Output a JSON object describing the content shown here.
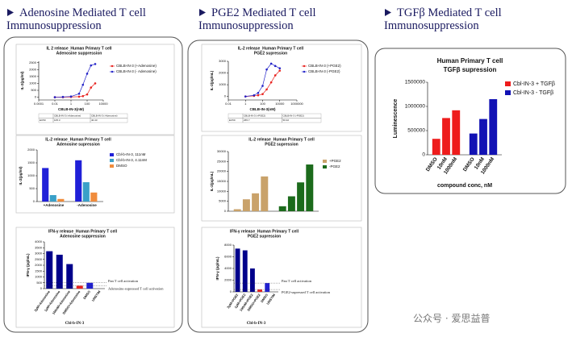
{
  "panels": [
    {
      "heading": "Adenosine Mediated T cell Immunosuppression"
    },
    {
      "heading": "PGE2 Mediated T cell Immunosuppression"
    },
    {
      "heading": "TGFβ Mediated T cell Immunosuppression"
    }
  ],
  "watermark": "公众号 · 爱思益普",
  "chart_data": [
    {
      "type": "line",
      "title": "IL 2 release_Human Primary T cell",
      "subtitle": "Adenosine suppression",
      "xlabel": "CBLB-IN-3(nM)",
      "ylabel": "IL-2(pg/ml)",
      "xlog": true,
      "x": [
        0.01,
        0.1,
        1,
        10,
        30,
        100,
        300,
        1000
      ],
      "xlim": [
        0.0001,
        10000
      ],
      "xticks": [
        0.0001,
        0.01,
        1,
        100,
        10000
      ],
      "ylim": [
        -200,
        2600
      ],
      "yticks": [
        0,
        500,
        1000,
        1500,
        2000,
        2500
      ],
      "legend": "right",
      "series": [
        {
          "name": "CBLB-IN-3 (+Adenosine)",
          "color": "#e8231f",
          "values": [
            0,
            0,
            20,
            40,
            80,
            200,
            700,
            1000
          ]
        },
        {
          "name": "CBLB-IN-3 (- Adenosine)",
          "color": "#2323c8",
          "values": [
            0,
            20,
            50,
            250,
            900,
            1700,
            2300,
            2400
          ]
        }
      ],
      "table": {
        "header": [
          "",
          "CBLB-IN-3 (+Adenosine)",
          "CBLB-IN-3 (-Adenosine)"
        ],
        "rows": [
          [
            "EC50",
            "105.3",
            "40.43"
          ]
        ]
      }
    },
    {
      "type": "bar",
      "group_by": "categories",
      "title": "IL-2 release_Human Primary T cell",
      "subtitle": "Adenosine supression",
      "ylabel": "IL-2(pg/ml)",
      "categories": [
        "+Adenosine",
        "-Adenosine"
      ],
      "ylim": [
        0,
        2000
      ],
      "yticks": [
        0,
        500,
        1000,
        1500,
        2000
      ],
      "legend": "right",
      "series": [
        {
          "name": "Cbl-b-IN-3, 111nM",
          "color": "#2020d8",
          "values": [
            1300,
            1600
          ]
        },
        {
          "name": "Cbl-b-IN-3, 4.11nM",
          "color": "#3aa0c8",
          "values": [
            250,
            750
          ]
        },
        {
          "name": "DMSO",
          "color": "#f08c3c",
          "values": [
            100,
            350
          ]
        }
      ]
    },
    {
      "type": "bar",
      "group_by": "none",
      "title": "IFN-γ release_Human Primary T cell",
      "subtitle": "Adenosine suppression",
      "ylabel": "IFN-γ (pg/mL)",
      "xlabel": "Cbl-b-IN-3",
      "categories": [
        "3μM+Adenosine",
        "1μM+Adenosine",
        "100nM+Adenosine",
        "DMSO+Adenosine",
        "DMSO",
        "UNSTIM"
      ],
      "values": [
        3200,
        2900,
        2100,
        250,
        500,
        0
      ],
      "colors": [
        "#00008b",
        "#00008b",
        "#00008b",
        "#e8231f",
        "#2020d0",
        "#2020d0"
      ],
      "ylim": [
        0,
        4000
      ],
      "yticks": [
        0,
        500,
        1000,
        1500,
        2000,
        2500,
        3000,
        3500,
        4000
      ],
      "annotations": [
        "Pan T cell activation",
        "Adenosine-supressed T cell activation"
      ]
    },
    {
      "type": "line",
      "title": "IL-2 release_Human Primary T cell",
      "subtitle": "PGE2 supression",
      "xlabel": "CBLB-IN-3(nM)",
      "ylabel": "IL-2(pg/mL)",
      "xlog": true,
      "x": [
        1,
        10,
        30,
        100,
        300,
        1000,
        3000,
        10000
      ],
      "xlim": [
        0.01,
        1000000
      ],
      "xticks": [
        0.01,
        1,
        100,
        10000,
        1000000
      ],
      "ylim": [
        -300,
        3000
      ],
      "yticks": [
        0,
        1000,
        2000,
        3000
      ],
      "legend": "right",
      "series": [
        {
          "name": "CBLB-IN-3 (+PGE2)",
          "color": "#e8231f",
          "values": [
            0,
            50,
            100,
            200,
            600,
            1200,
            1800,
            2200
          ]
        },
        {
          "name": "CBLB-IN-3 (-PGE2)",
          "color": "#2323c8",
          "values": [
            0,
            100,
            300,
            900,
            2300,
            2800,
            2600,
            2400
          ]
        }
      ],
      "table": {
        "header": [
          "",
          "CBLB-IN-3 (+PGE2)",
          "CBLB-IN-3 (-PGE2)"
        ],
        "rows": [
          [
            "EC50",
            "265.7",
            "50.32"
          ]
        ]
      }
    },
    {
      "type": "bar",
      "group_by": "series",
      "title": "IL-2 release_Human Primary T cell",
      "subtitle": "PGE2 supression",
      "ylabel": "IL-2(pg/mL)",
      "categories": [
        null,
        null,
        null,
        null
      ],
      "ylim": [
        0,
        30000
      ],
      "yticks": [
        0,
        5000,
        10000,
        15000,
        20000,
        25000,
        30000
      ],
      "legend": "right",
      "series": [
        {
          "name": "+PGE2",
          "color": "#c9a26a",
          "values": [
            1000,
            6000,
            9000,
            17500
          ]
        },
        {
          "name": "-PGE2",
          "color": "#1c6b1c",
          "values": [
            2500,
            7500,
            14500,
            23500
          ]
        }
      ]
    },
    {
      "type": "bar",
      "group_by": "none",
      "title": "IFN-γ release_Human Primary T cell",
      "subtitle": "PGE2 supression",
      "ylabel": "IFN-γ (pg/mL)",
      "xlabel": "Cbl-b-IN-3",
      "categories": [
        "3μM+PGE2",
        "1μM+PGE2",
        "100nM+PGE2",
        "DMSO+PGE2",
        "DMSO",
        "UNSTIM"
      ],
      "values": [
        7400,
        7100,
        4000,
        400,
        1500,
        0
      ],
      "colors": [
        "#00008b",
        "#00008b",
        "#00008b",
        "#e8231f",
        "#2020d0",
        "#2020d0"
      ],
      "ylim": [
        0,
        8000
      ],
      "yticks": [
        0,
        2000,
        4000,
        6000,
        8000
      ],
      "annotations": [
        "Pan T cell activation",
        "PGE2-supressed T cell activation"
      ]
    },
    {
      "type": "bar",
      "group_by": "series",
      "title": "Human Primary T cell",
      "subtitle": "TGFβ supression",
      "ylabel": "Luminescence",
      "xlabel": "compound conc, nM",
      "categories": [
        "DMSO",
        "10nM",
        "1000nM"
      ],
      "ylim": [
        0,
        1500000
      ],
      "yticks": [
        0,
        500000,
        1000000,
        1500000
      ],
      "legend": "upper right",
      "series": [
        {
          "name": "Cbl-IN-3 + TGFβ",
          "color": "#ee1c1c",
          "values": [
            330000,
            760000,
            920000
          ]
        },
        {
          "name": "Cbl-IN-3 - TGFβ",
          "color": "#1212b4",
          "values": [
            440000,
            740000,
            1150000
          ]
        }
      ]
    }
  ]
}
